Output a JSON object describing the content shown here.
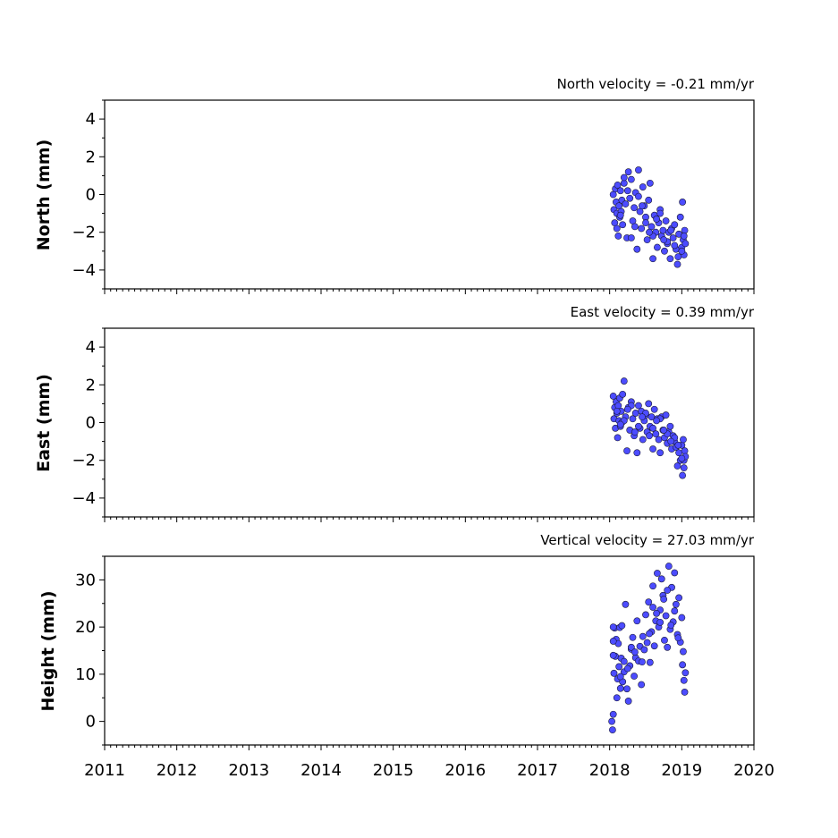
{
  "chart_data": [
    {
      "type": "scatter",
      "title": "North velocity = -0.21 mm/yr",
      "ylabel": "North (mm)",
      "xlim": [
        2011,
        2020
      ],
      "ylim": [
        -5,
        5
      ],
      "yticks": [
        -4,
        -2,
        0,
        2,
        4
      ],
      "point_color": "#4c4cff",
      "series": [
        {
          "x": [
            2018.05,
            2018.06,
            2018.07,
            2018.08,
            2018.09,
            2018.1,
            2018.11,
            2018.12,
            2018.13,
            2018.14,
            2018.15,
            2018.16,
            2018.17,
            2018.18,
            2018.2,
            2018.22,
            2018.24,
            2018.26,
            2018.28,
            2018.3,
            2018.32,
            2018.34,
            2018.36,
            2018.38,
            2018.4,
            2018.42,
            2018.44,
            2018.46,
            2018.48,
            2018.5,
            2018.52,
            2018.54,
            2018.56,
            2018.58,
            2018.6,
            2018.62,
            2018.64,
            2018.66,
            2018.68,
            2018.7,
            2018.72,
            2018.74,
            2018.76,
            2018.78,
            2018.8,
            2018.82,
            2018.84,
            2018.86,
            2018.88,
            2018.9,
            2018.92,
            2018.94,
            2018.96,
            2018.98,
            2019.0,
            2019.01,
            2019.02,
            2019.03,
            2019.04,
            2019.05,
            2018.1,
            2018.2,
            2018.3,
            2018.4,
            2018.5,
            2018.6,
            2018.7,
            2018.8,
            2018.9,
            2019.0,
            2018.15,
            2018.25,
            2018.35,
            2018.45,
            2018.55,
            2018.65,
            2018.75,
            2018.85,
            2018.95,
            2019.03
          ],
          "y": [
            0.0,
            -0.8,
            -1.5,
            0.3,
            -0.4,
            -1.0,
            0.5,
            -2.2,
            -0.6,
            -1.2,
            0.2,
            -0.9,
            -0.3,
            -1.6,
            0.6,
            -0.5,
            -2.3,
            1.2,
            -0.2,
            0.8,
            -1.4,
            -0.7,
            0.1,
            -2.9,
            1.3,
            -0.9,
            -1.8,
            0.4,
            -0.6,
            -1.2,
            -2.4,
            -0.3,
            0.6,
            -1.7,
            -3.4,
            -1.1,
            -2.0,
            -2.8,
            -1.5,
            -0.8,
            -2.2,
            -1.9,
            -3.0,
            -1.4,
            -2.6,
            -2.0,
            -3.4,
            -1.8,
            -2.3,
            -1.6,
            -2.9,
            -3.7,
            -2.1,
            -1.2,
            -2.8,
            -0.4,
            -2.4,
            -3.2,
            -1.9,
            -2.6,
            -1.8,
            0.9,
            -2.3,
            -0.1,
            -1.5,
            -2.2,
            -1.0,
            -2.5,
            -2.7,
            -3.0,
            -1.1,
            0.2,
            -1.7,
            -0.6,
            -2.0,
            -1.3,
            -2.4,
            -1.9,
            -3.3,
            -2.2
          ]
        }
      ]
    },
    {
      "type": "scatter",
      "title": "East velocity = 0.39 mm/yr",
      "ylabel": "East (mm)",
      "xlim": [
        2011,
        2020
      ],
      "ylim": [
        -5,
        5
      ],
      "yticks": [
        -4,
        -2,
        0,
        2,
        4
      ],
      "point_color": "#4c4cff",
      "series": [
        {
          "x": [
            2018.05,
            2018.06,
            2018.07,
            2018.08,
            2018.09,
            2018.1,
            2018.11,
            2018.12,
            2018.13,
            2018.14,
            2018.15,
            2018.16,
            2018.17,
            2018.18,
            2018.2,
            2018.22,
            2018.24,
            2018.26,
            2018.28,
            2018.3,
            2018.32,
            2018.34,
            2018.36,
            2018.38,
            2018.4,
            2018.42,
            2018.44,
            2018.46,
            2018.48,
            2018.5,
            2018.52,
            2018.54,
            2018.56,
            2018.58,
            2018.6,
            2018.62,
            2018.64,
            2018.66,
            2018.68,
            2018.7,
            2018.72,
            2018.74,
            2018.76,
            2018.78,
            2018.8,
            2018.82,
            2018.84,
            2018.86,
            2018.88,
            2018.9,
            2018.92,
            2018.94,
            2018.96,
            2018.98,
            2019.0,
            2019.01,
            2019.02,
            2019.03,
            2019.04,
            2019.05,
            2018.1,
            2018.2,
            2018.3,
            2018.4,
            2018.5,
            2018.6,
            2018.7,
            2018.8,
            2018.9,
            2019.0,
            2018.15,
            2018.25,
            2018.35,
            2018.45,
            2018.55,
            2018.65,
            2018.75,
            2018.85,
            2018.95,
            2019.03
          ],
          "y": [
            1.4,
            0.2,
            0.8,
            -0.3,
            1.1,
            0.5,
            -0.8,
            0.9,
            0.1,
            1.3,
            -0.2,
            0.6,
            0.0,
            1.5,
            2.2,
            0.3,
            -1.5,
            0.8,
            -0.4,
            1.1,
            0.2,
            -0.7,
            0.5,
            -1.6,
            0.9,
            -0.3,
            0.6,
            -0.9,
            0.1,
            0.4,
            -0.5,
            1.0,
            -0.2,
            0.3,
            -1.4,
            0.7,
            -0.6,
            0.2,
            -0.9,
            -1.6,
            0.3,
            -0.4,
            -0.8,
            0.4,
            -1.1,
            -0.5,
            -0.2,
            -1.4,
            -0.7,
            -1.0,
            -1.3,
            -2.3,
            -1.6,
            -2.0,
            -1.2,
            -2.8,
            -0.9,
            -2.0,
            -1.5,
            -1.8,
            0.6,
            0.1,
            0.9,
            -0.2,
            0.5,
            -0.3,
            0.2,
            -0.6,
            -0.8,
            -1.9,
            -0.1,
            0.7,
            -0.5,
            0.3,
            -0.7,
            0.1,
            -0.4,
            -1.0,
            -1.2,
            -2.4
          ]
        }
      ]
    },
    {
      "type": "scatter",
      "title": "Vertical velocity = 27.03 mm/yr",
      "ylabel": "Height (mm)",
      "xlabel": "",
      "xlim": [
        2011,
        2020
      ],
      "ylim": [
        -5,
        35
      ],
      "yticks": [
        0,
        10,
        20,
        30
      ],
      "xticks": [
        2011,
        2012,
        2013,
        2014,
        2015,
        2016,
        2017,
        2018,
        2019,
        2020
      ],
      "point_color": "#4c4cff",
      "series": [
        {
          "x": [
            2018.03,
            2018.04,
            2018.05,
            2018.06,
            2018.07,
            2018.08,
            2018.09,
            2018.1,
            2018.11,
            2018.12,
            2018.13,
            2018.14,
            2018.15,
            2018.16,
            2018.17,
            2018.18,
            2018.2,
            2018.22,
            2018.24,
            2018.26,
            2018.28,
            2018.3,
            2018.32,
            2018.34,
            2018.36,
            2018.38,
            2018.4,
            2018.42,
            2018.44,
            2018.46,
            2018.48,
            2018.5,
            2018.52,
            2018.54,
            2018.56,
            2018.58,
            2018.6,
            2018.62,
            2018.64,
            2018.66,
            2018.68,
            2018.7,
            2018.72,
            2018.74,
            2018.76,
            2018.78,
            2018.8,
            2018.82,
            2018.84,
            2018.86,
            2018.88,
            2018.9,
            2018.92,
            2018.94,
            2018.96,
            2018.98,
            2019.0,
            2019.01,
            2019.02,
            2019.03,
            2019.04,
            2019.05,
            2018.05,
            2018.05,
            2018.05,
            2018.2,
            2018.3,
            2018.45,
            2018.6,
            2018.7,
            2018.8,
            2018.9,
            2018.15,
            2018.25,
            2018.35,
            2018.55,
            2018.65,
            2018.75,
            2018.85,
            2018.95
          ],
          "y": [
            0.0,
            -1.8,
            1.5,
            10.2,
            19.8,
            13.8,
            17.4,
            5.0,
            9.0,
            16.5,
            11.6,
            19.9,
            7.0,
            13.4,
            20.3,
            8.4,
            12.7,
            24.8,
            6.9,
            4.3,
            11.8,
            15.3,
            17.8,
            9.6,
            13.5,
            21.3,
            12.8,
            15.9,
            7.8,
            18.0,
            15.2,
            22.6,
            16.7,
            25.3,
            12.5,
            19.0,
            28.7,
            16.0,
            21.3,
            31.4,
            20.0,
            23.6,
            30.2,
            26.7,
            17.2,
            22.4,
            15.7,
            32.9,
            19.5,
            28.4,
            21.1,
            31.5,
            24.8,
            18.4,
            26.2,
            16.8,
            22.0,
            12.0,
            14.8,
            8.7,
            6.2,
            10.3,
            14.0,
            20.0,
            17.0,
            10.5,
            15.7,
            12.6,
            24.2,
            21.0,
            27.8,
            23.4,
            9.5,
            11.2,
            14.7,
            18.6,
            22.9,
            25.9,
            20.4,
            17.7
          ]
        }
      ]
    }
  ]
}
